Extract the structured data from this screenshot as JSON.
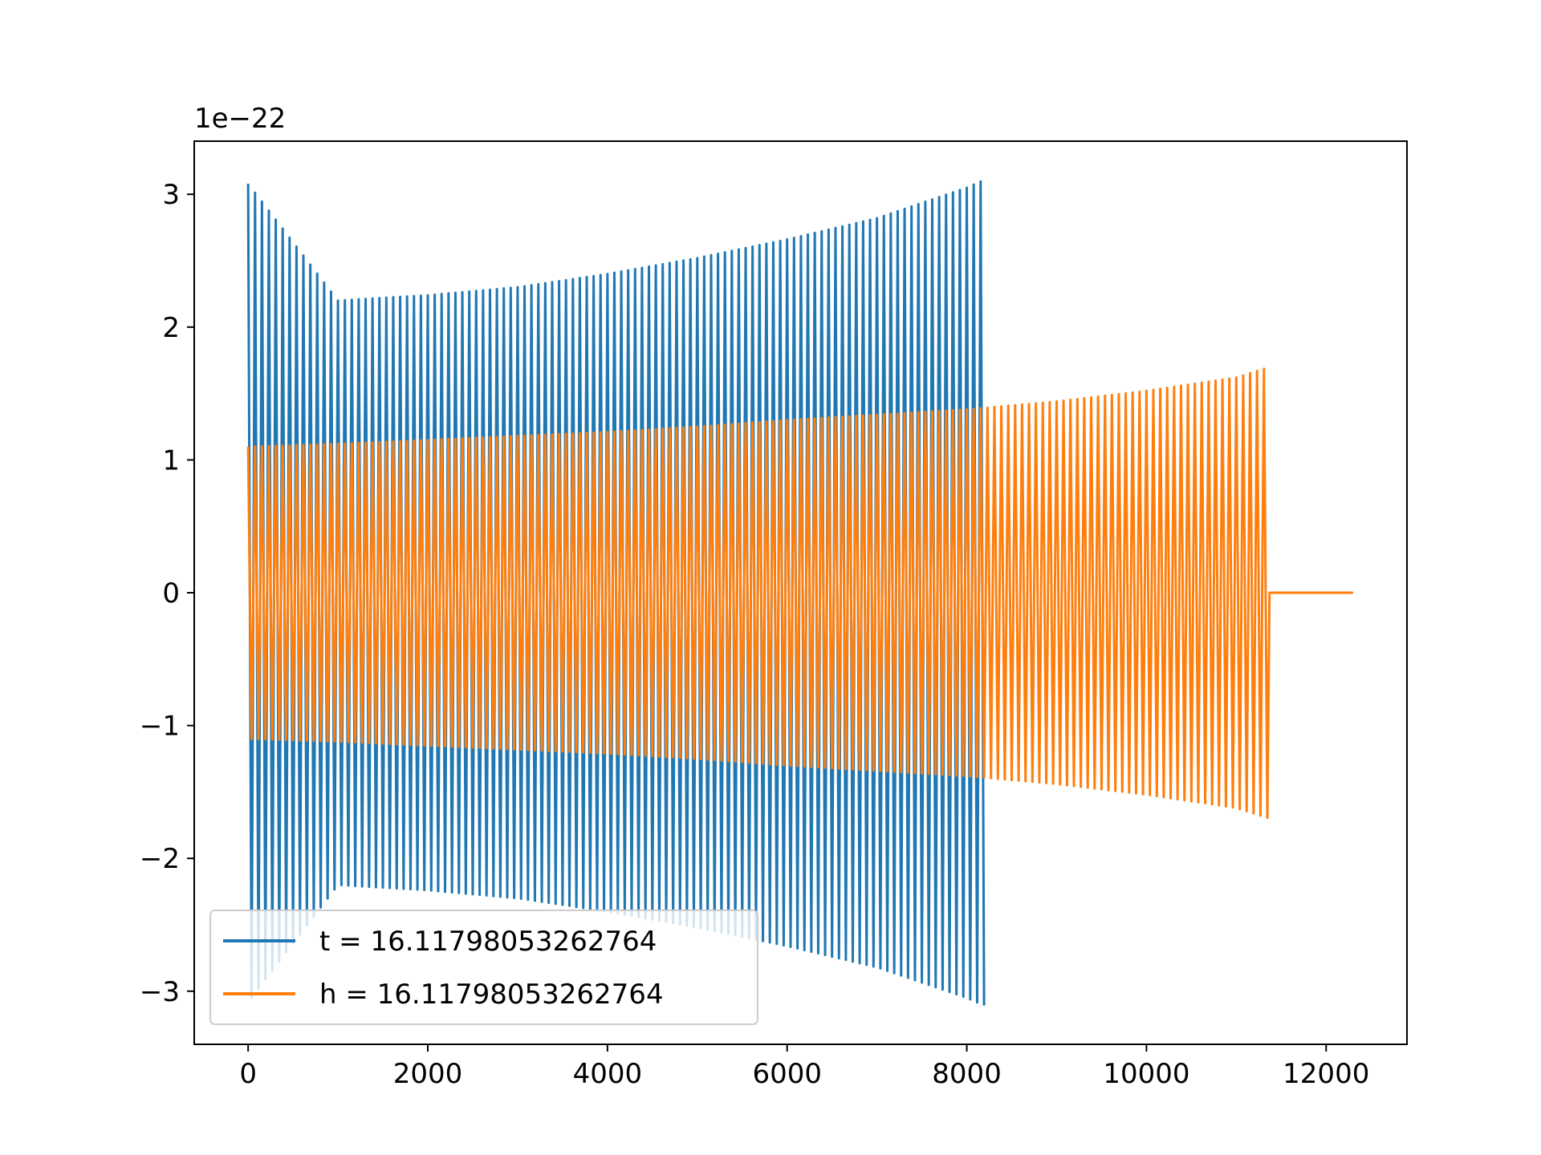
{
  "chart_data": {
    "type": "line",
    "title": "",
    "xlabel": "",
    "ylabel": "",
    "y_offset_label": "1e−22",
    "xlim": [
      -600,
      12900
    ],
    "ylim": [
      -3.4,
      3.4
    ],
    "x_ticks": [
      0,
      2000,
      4000,
      6000,
      8000,
      10000,
      12000
    ],
    "x_tick_labels": [
      "0",
      "2000",
      "4000",
      "6000",
      "8000",
      "10000",
      "12000"
    ],
    "y_ticks": [
      -3,
      -2,
      -1,
      0,
      1,
      2,
      3
    ],
    "y_tick_labels": [
      "−3",
      "−2",
      "−1",
      "0",
      "1",
      "2",
      "3"
    ],
    "grid": false,
    "legend_position": "lower-left",
    "series": [
      {
        "name": "t = 16.11798053262764",
        "color": "#1f77b4",
        "envelope": {
          "x": [
            0,
            1000,
            2000,
            3000,
            4000,
            5000,
            6000,
            7000,
            8000,
            8200
          ],
          "amplitude": [
            3.08,
            2.2,
            2.24,
            2.3,
            2.4,
            2.52,
            2.66,
            2.82,
            3.05,
            3.11
          ]
        },
        "cycles_per_1000": 13
      },
      {
        "name": "h = 16.11798053262764",
        "color": "#ff7f0e",
        "envelope": {
          "x": [
            0,
            1000,
            2000,
            3000,
            4000,
            5000,
            6000,
            7000,
            8000,
            9000,
            10000,
            11000,
            11370,
            12300
          ],
          "amplitude": [
            1.1,
            1.12,
            1.15,
            1.18,
            1.21,
            1.25,
            1.3,
            1.34,
            1.38,
            1.44,
            1.52,
            1.62,
            1.7,
            0
          ]
        },
        "cycles_per_1000": 13
      }
    ]
  }
}
